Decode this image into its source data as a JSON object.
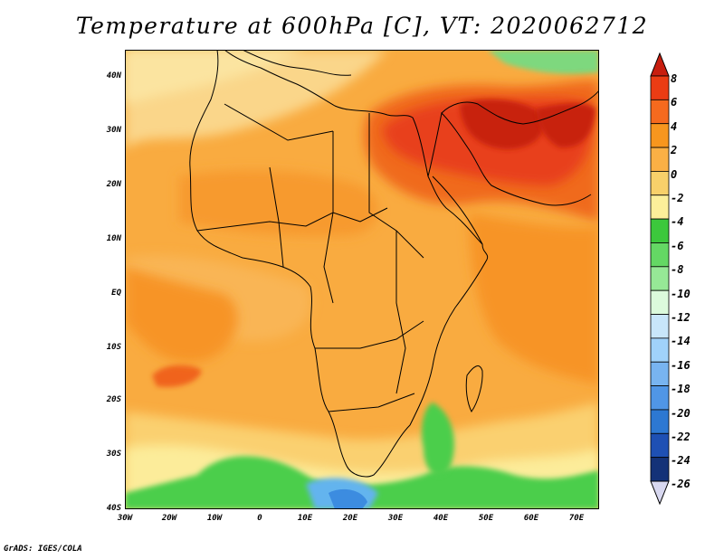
{
  "title": "Temperature at 600hPa [C], VT: 2020062712",
  "credit": "GrADS: IGES/COLA",
  "map": {
    "lat_labels": [
      "40N",
      "30N",
      "20N",
      "10N",
      "EQ",
      "10S",
      "20S",
      "30S",
      "40S"
    ],
    "lon_labels": [
      "30W",
      "20W",
      "10W",
      "0",
      "10E",
      "20E",
      "30E",
      "40E",
      "50E",
      "60E",
      "70E"
    ]
  },
  "colorbar": {
    "labels": [
      "8",
      "6",
      "4",
      "2",
      "0",
      "-2",
      "-4",
      "-6",
      "-8",
      "-10",
      "-12",
      "-14",
      "-16",
      "-18",
      "-20",
      "-22",
      "-24",
      "-26"
    ],
    "colors": [
      "#c81e0f",
      "#eb3c14",
      "#f56a1e",
      "#f7961e",
      "#fab045",
      "#f8d06a",
      "#fcef9a",
      "#3cc83c",
      "#64d864",
      "#96e896",
      "#dcfadc",
      "#c8e6fa",
      "#a0d2fa",
      "#78b4f0",
      "#5096e6",
      "#2d78d2",
      "#1e50b4",
      "#143278",
      "#0a0a46"
    ]
  }
}
